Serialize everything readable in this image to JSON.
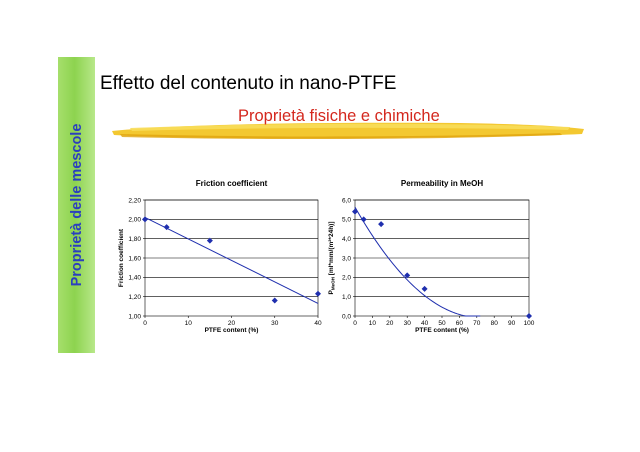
{
  "slide": {
    "side_label": "Proprietà delle mescole",
    "title": "Effetto del contenuto in nano-PTFE",
    "subtitle": "Proprietà fisiche e chimiche",
    "accent_colors": {
      "side_bar": "#8dd34f",
      "side_text": "#2b3fbf",
      "subtitle": "#d4281e",
      "brush": "#f2c21b"
    }
  },
  "chart_data": [
    {
      "type": "scatter",
      "title": "Friction coefficient",
      "xlabel": "PTFE content (%)",
      "ylabel": "Friction coefficient",
      "xlim": [
        0,
        40
      ],
      "ylim": [
        1.0,
        2.2
      ],
      "x_ticks": [
        0,
        10,
        20,
        30,
        40
      ],
      "x_tick_labels": [
        "0",
        "10",
        "20",
        "30",
        "40"
      ],
      "y_ticks": [
        1.0,
        1.2,
        1.4,
        1.6,
        1.8,
        2.0,
        2.2
      ],
      "y_tick_labels": [
        "1,00",
        "1,20",
        "1,40",
        "1,60",
        "1,80",
        "2,00",
        "2,20"
      ],
      "grid": true,
      "marker_color": "#1f2fae",
      "points": [
        {
          "x": 0,
          "y": 2.0
        },
        {
          "x": 5,
          "y": 1.92
        },
        {
          "x": 15,
          "y": 1.78
        },
        {
          "x": 30,
          "y": 1.16
        },
        {
          "x": 40,
          "y": 1.23
        }
      ],
      "trendline": {
        "type": "linear",
        "points": [
          {
            "x": 0,
            "y": 2.02
          },
          {
            "x": 40,
            "y": 1.13
          }
        ]
      }
    },
    {
      "type": "scatter",
      "title": "Permeability in MeOH",
      "xlabel": "PTFE content (%)",
      "ylabel": "P_MeOH [ml*mm/(m²*24h)]",
      "ylabel_main": "P",
      "ylabel_sub": "MeOH",
      "ylabel_rest": " [ml*mm/(m²*24h)]",
      "xlim": [
        0,
        100
      ],
      "ylim": [
        0,
        6
      ],
      "x_ticks": [
        0,
        10,
        20,
        30,
        40,
        50,
        60,
        70,
        80,
        90,
        100
      ],
      "x_tick_labels": [
        "0",
        "10",
        "20",
        "30",
        "40",
        "50",
        "60",
        "70",
        "80",
        "90",
        "100"
      ],
      "y_ticks": [
        0,
        1,
        2,
        3,
        4,
        5,
        6
      ],
      "y_tick_labels": [
        "0,0",
        "1,0",
        "2,0",
        "3,0",
        "4,0",
        "5,0",
        "6,0"
      ],
      "grid": true,
      "marker_color": "#1f2fae",
      "points": [
        {
          "x": 0,
          "y": 5.4
        },
        {
          "x": 5,
          "y": 5.0
        },
        {
          "x": 15,
          "y": 4.75
        },
        {
          "x": 30,
          "y": 2.1
        },
        {
          "x": 40,
          "y": 1.4
        },
        {
          "x": 100,
          "y": 0.0
        }
      ],
      "trendline": {
        "type": "polynomial",
        "coefficients": [
          5.63,
          -0.1581,
          0.001093
        ],
        "x_range": [
          0,
          72
        ]
      }
    }
  ]
}
